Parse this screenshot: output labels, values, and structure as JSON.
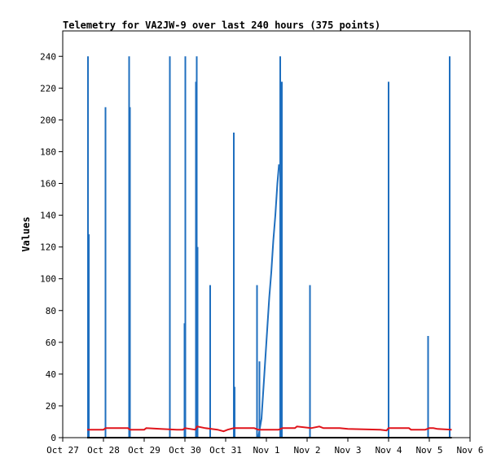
{
  "chart_data": {
    "type": "line",
    "title": "Telemetry for VA2JW-9 over last 240 hours (375 points)",
    "xlabel": "",
    "ylabel": "Values",
    "x_ticks": [
      "Oct 27",
      "Oct 28",
      "Oct 29",
      "Oct 30",
      "Oct 31",
      "Nov 1",
      "Nov 2",
      "Nov 3",
      "Nov 4",
      "Nov 5",
      "Nov 6"
    ],
    "y_ticks": [
      0,
      20,
      40,
      60,
      80,
      100,
      120,
      140,
      160,
      180,
      200,
      220,
      240
    ],
    "xlim_days": [
      0,
      10
    ],
    "ylim": [
      0,
      256
    ],
    "grid": false,
    "series": [
      {
        "color": "#1f6fbf",
        "style": "spikes",
        "spikes": [
          {
            "x": 0.62,
            "y": 240
          },
          {
            "x": 0.64,
            "y": 128
          },
          {
            "x": 1.05,
            "y": 208
          },
          {
            "x": 1.63,
            "y": 240
          },
          {
            "x": 1.65,
            "y": 208
          },
          {
            "x": 2.63,
            "y": 240
          },
          {
            "x": 2.99,
            "y": 72
          },
          {
            "x": 3.01,
            "y": 240
          },
          {
            "x": 3.27,
            "y": 224
          },
          {
            "x": 3.29,
            "y": 240
          },
          {
            "x": 3.31,
            "y": 120
          },
          {
            "x": 3.62,
            "y": 96
          },
          {
            "x": 4.2,
            "y": 192
          },
          {
            "x": 4.22,
            "y": 32
          },
          {
            "x": 4.77,
            "y": 96
          },
          {
            "x": 4.83,
            "y": 48
          },
          {
            "x": 5.34,
            "y": 240
          },
          {
            "x": 5.38,
            "y": 224
          },
          {
            "x": 6.07,
            "y": 96
          },
          {
            "x": 8.0,
            "y": 224
          },
          {
            "x": 8.97,
            "y": 64
          },
          {
            "x": 9.5,
            "y": 240
          }
        ],
        "ramp": [
          {
            "x": 4.8,
            "y": 0
          },
          {
            "x": 4.88,
            "y": 12
          },
          {
            "x": 4.93,
            "y": 32
          },
          {
            "x": 4.97,
            "y": 48
          },
          {
            "x": 5.02,
            "y": 68
          },
          {
            "x": 5.07,
            "y": 88
          },
          {
            "x": 5.12,
            "y": 104
          },
          {
            "x": 5.17,
            "y": 124
          },
          {
            "x": 5.22,
            "y": 140
          },
          {
            "x": 5.27,
            "y": 160
          },
          {
            "x": 5.31,
            "y": 172
          }
        ]
      },
      {
        "color": "#e0141b",
        "style": "line",
        "points": [
          {
            "x": 0.6,
            "y": 5
          },
          {
            "x": 1.0,
            "y": 5
          },
          {
            "x": 1.05,
            "y": 6
          },
          {
            "x": 1.6,
            "y": 6
          },
          {
            "x": 1.65,
            "y": 5
          },
          {
            "x": 2.0,
            "y": 5
          },
          {
            "x": 2.05,
            "y": 6
          },
          {
            "x": 2.4,
            "y": 5.5
          },
          {
            "x": 2.8,
            "y": 5
          },
          {
            "x": 2.95,
            "y": 5
          },
          {
            "x": 3.0,
            "y": 6
          },
          {
            "x": 3.25,
            "y": 5
          },
          {
            "x": 3.3,
            "y": 7
          },
          {
            "x": 3.5,
            "y": 6
          },
          {
            "x": 3.8,
            "y": 5
          },
          {
            "x": 3.95,
            "y": 4
          },
          {
            "x": 4.05,
            "y": 5
          },
          {
            "x": 4.2,
            "y": 6
          },
          {
            "x": 4.7,
            "y": 6
          },
          {
            "x": 4.8,
            "y": 5
          },
          {
            "x": 5.3,
            "y": 5
          },
          {
            "x": 5.4,
            "y": 6
          },
          {
            "x": 5.7,
            "y": 6
          },
          {
            "x": 5.75,
            "y": 7
          },
          {
            "x": 6.1,
            "y": 6
          },
          {
            "x": 6.3,
            "y": 7
          },
          {
            "x": 6.4,
            "y": 6
          },
          {
            "x": 6.8,
            "y": 6
          },
          {
            "x": 7.0,
            "y": 5.5
          },
          {
            "x": 7.8,
            "y": 5
          },
          {
            "x": 7.95,
            "y": 4.5
          },
          {
            "x": 8.0,
            "y": 6
          },
          {
            "x": 8.5,
            "y": 6
          },
          {
            "x": 8.55,
            "y": 5
          },
          {
            "x": 8.9,
            "y": 5
          },
          {
            "x": 9.0,
            "y": 6
          },
          {
            "x": 9.1,
            "y": 6
          },
          {
            "x": 9.2,
            "y": 5.5
          },
          {
            "x": 9.55,
            "y": 5
          }
        ]
      },
      {
        "color": "#000000",
        "style": "line",
        "points": [
          {
            "x": 0.6,
            "y": 0
          },
          {
            "x": 9.55,
            "y": 0
          }
        ]
      }
    ]
  }
}
